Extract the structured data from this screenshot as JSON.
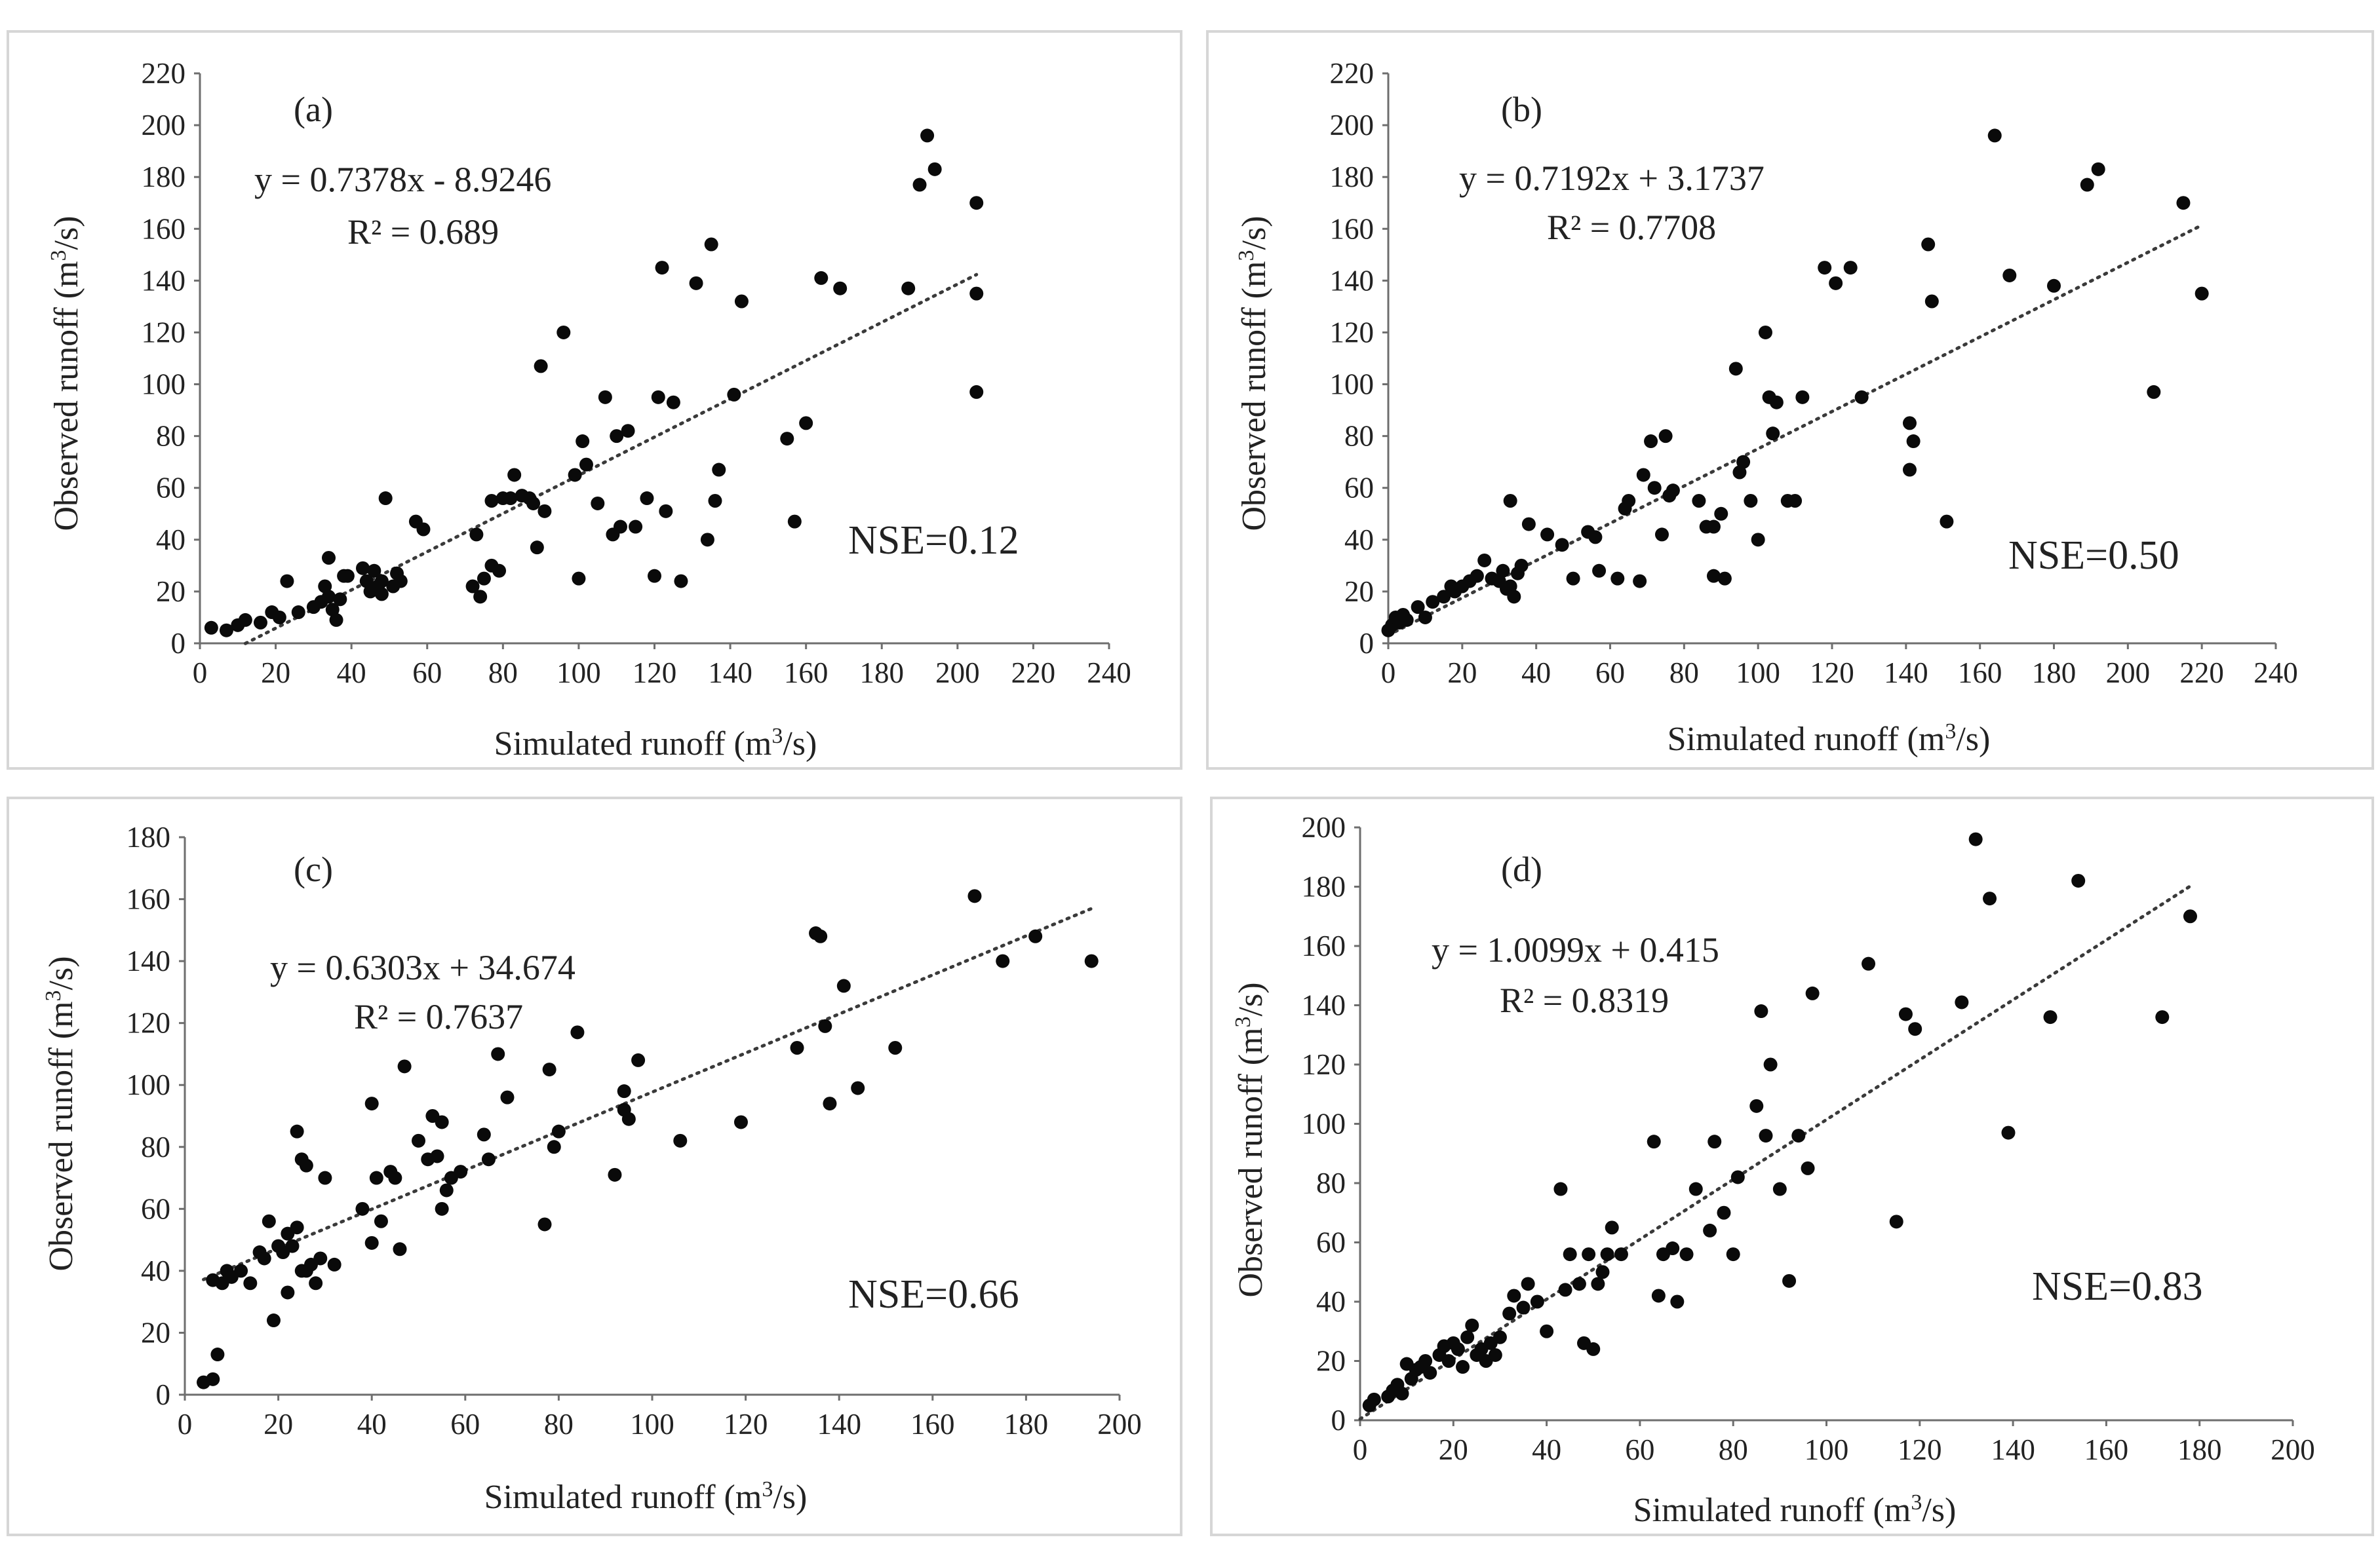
{
  "chart_data": [
    {
      "type": "scatter",
      "panel_label": "(a)",
      "xlabel": "Simulated runoff (m3/s)",
      "ylabel": "Observed runoff (m3/s)",
      "xlim": [
        0,
        240
      ],
      "ylim": [
        0,
        220
      ],
      "xticks": [
        0,
        20,
        40,
        60,
        80,
        100,
        120,
        140,
        160,
        180,
        200,
        220,
        240
      ],
      "yticks": [
        0,
        20,
        40,
        60,
        80,
        100,
        120,
        140,
        160,
        180,
        200,
        220
      ],
      "trendline": {
        "slope": 0.7378,
        "intercept": -8.9246,
        "x_range": [
          12,
          205
        ]
      },
      "equation": "y = 0.7378x - 8.9246",
      "r2": "R² = 0.689",
      "nse": "NSE=0.12",
      "points": [
        [
          3,
          6
        ],
        [
          7,
          5
        ],
        [
          10,
          7
        ],
        [
          12,
          9
        ],
        [
          16,
          8
        ],
        [
          19,
          12
        ],
        [
          21,
          10
        ],
        [
          23,
          24
        ],
        [
          26,
          12
        ],
        [
          30,
          14
        ],
        [
          32,
          16
        ],
        [
          33,
          22
        ],
        [
          34,
          33
        ],
        [
          34,
          18
        ],
        [
          35,
          13
        ],
        [
          36,
          9
        ],
        [
          37,
          17
        ],
        [
          38,
          26
        ],
        [
          39,
          26
        ],
        [
          43,
          29
        ],
        [
          44,
          24
        ],
        [
          45,
          20
        ],
        [
          46,
          28
        ],
        [
          47,
          22
        ],
        [
          48,
          24
        ],
        [
          48,
          19
        ],
        [
          49,
          56
        ],
        [
          51,
          22
        ],
        [
          52,
          27
        ],
        [
          53,
          24
        ],
        [
          57,
          47
        ],
        [
          59,
          44
        ],
        [
          72,
          22
        ],
        [
          73,
          42
        ],
        [
          74,
          18
        ],
        [
          75,
          25
        ],
        [
          77,
          30
        ],
        [
          77,
          55
        ],
        [
          79,
          28
        ],
        [
          80,
          56
        ],
        [
          82,
          56
        ],
        [
          83,
          65
        ],
        [
          85,
          57
        ],
        [
          87,
          56
        ],
        [
          88,
          54
        ],
        [
          89,
          37
        ],
        [
          90,
          107
        ],
        [
          91,
          51
        ],
        [
          96,
          120
        ],
        [
          99,
          65
        ],
        [
          100,
          25
        ],
        [
          101,
          78
        ],
        [
          102,
          69
        ],
        [
          105,
          54
        ],
        [
          107,
          95
        ],
        [
          109,
          42
        ],
        [
          110,
          80
        ],
        [
          111,
          45
        ],
        [
          113,
          82
        ],
        [
          115,
          45
        ],
        [
          118,
          56
        ],
        [
          120,
          26
        ],
        [
          121,
          95
        ],
        [
          122,
          145
        ],
        [
          123,
          51
        ],
        [
          125,
          93
        ],
        [
          127,
          24
        ],
        [
          131,
          139
        ],
        [
          134,
          40
        ],
        [
          135,
          154
        ],
        [
          136,
          55
        ],
        [
          137,
          67
        ],
        [
          141,
          96
        ],
        [
          143,
          132
        ],
        [
          155,
          79
        ],
        [
          157,
          47
        ],
        [
          160,
          85
        ],
        [
          164,
          141
        ],
        [
          169,
          137
        ],
        [
          187,
          137
        ],
        [
          190,
          177
        ],
        [
          192,
          196
        ],
        [
          194,
          183
        ],
        [
          205,
          170
        ],
        [
          205,
          135
        ],
        [
          205,
          97
        ]
      ]
    },
    {
      "type": "scatter",
      "panel_label": "(b)",
      "xlabel": "Simulated runoff (m3/s)",
      "ylabel": "Observed runoff (m3/s)",
      "xlim": [
        0,
        240
      ],
      "ylim": [
        0,
        220
      ],
      "xticks": [
        0,
        20,
        40,
        60,
        80,
        100,
        120,
        140,
        160,
        180,
        200,
        220,
        240
      ],
      "yticks": [
        0,
        20,
        40,
        60,
        80,
        100,
        120,
        140,
        160,
        180,
        200,
        220
      ],
      "trendline": {
        "slope": 0.7192,
        "intercept": 3.1737,
        "x_range": [
          0,
          220
        ]
      },
      "equation": "y = 0.7192x + 3.1737",
      "r2": "R² = 0.7708",
      "nse": "NSE=0.50",
      "points": [
        [
          0,
          5
        ],
        [
          1,
          7
        ],
        [
          2,
          10
        ],
        [
          3,
          8
        ],
        [
          4,
          11
        ],
        [
          5,
          9
        ],
        [
          8,
          14
        ],
        [
          10,
          10
        ],
        [
          12,
          16
        ],
        [
          15,
          18
        ],
        [
          17,
          22
        ],
        [
          18,
          20
        ],
        [
          20,
          22
        ],
        [
          22,
          24
        ],
        [
          24,
          26
        ],
        [
          26,
          32
        ],
        [
          28,
          25
        ],
        [
          30,
          24
        ],
        [
          31,
          28
        ],
        [
          32,
          21
        ],
        [
          33,
          22
        ],
        [
          33,
          55
        ],
        [
          34,
          18
        ],
        [
          35,
          27
        ],
        [
          36,
          30
        ],
        [
          38,
          46
        ],
        [
          43,
          42
        ],
        [
          47,
          38
        ],
        [
          50,
          25
        ],
        [
          54,
          43
        ],
        [
          56,
          41
        ],
        [
          57,
          28
        ],
        [
          62,
          25
        ],
        [
          64,
          52
        ],
        [
          65,
          55
        ],
        [
          68,
          24
        ],
        [
          69,
          65
        ],
        [
          71,
          78
        ],
        [
          72,
          60
        ],
        [
          74,
          42
        ],
        [
          75,
          80
        ],
        [
          76,
          57
        ],
        [
          77,
          59
        ],
        [
          84,
          55
        ],
        [
          86,
          45
        ],
        [
          88,
          26
        ],
        [
          88,
          45
        ],
        [
          90,
          50
        ],
        [
          91,
          25
        ],
        [
          94,
          106
        ],
        [
          95,
          66
        ],
        [
          96,
          70
        ],
        [
          98,
          55
        ],
        [
          100,
          40
        ],
        [
          102,
          120
        ],
        [
          103,
          95
        ],
        [
          104,
          81
        ],
        [
          105,
          93
        ],
        [
          108,
          55
        ],
        [
          110,
          55
        ],
        [
          112,
          95
        ],
        [
          118,
          145
        ],
        [
          121,
          139
        ],
        [
          125,
          145
        ],
        [
          128,
          95
        ],
        [
          141,
          85
        ],
        [
          142,
          78
        ],
        [
          141,
          67
        ],
        [
          146,
          154
        ],
        [
          147,
          132
        ],
        [
          151,
          47
        ],
        [
          164,
          196
        ],
        [
          168,
          142
        ],
        [
          180,
          138
        ],
        [
          189,
          177
        ],
        [
          192,
          183
        ],
        [
          207,
          97
        ],
        [
          215,
          170
        ],
        [
          220,
          135
        ]
      ]
    },
    {
      "type": "scatter",
      "panel_label": "(c)",
      "xlabel": "Simulated runoff (m3/s)",
      "ylabel": "Observed runoff (m3/s)",
      "xlim": [
        0,
        200
      ],
      "ylim": [
        0,
        180
      ],
      "xticks": [
        0,
        20,
        40,
        60,
        80,
        100,
        120,
        140,
        160,
        180,
        200
      ],
      "yticks": [
        0,
        20,
        40,
        60,
        80,
        100,
        120,
        140,
        160,
        180
      ],
      "trendline": {
        "slope": 0.6303,
        "intercept": 34.674,
        "x_range": [
          4,
          195
        ]
      },
      "equation": "y = 0.6303x + 34.674",
      "r2": "R² = 0.7637",
      "nse": "NSE=0.66",
      "points": [
        [
          4,
          4
        ],
        [
          6,
          5
        ],
        [
          7,
          13
        ],
        [
          6,
          37
        ],
        [
          8,
          36
        ],
        [
          9,
          40
        ],
        [
          10,
          38
        ],
        [
          12,
          40
        ],
        [
          14,
          36
        ],
        [
          16,
          46
        ],
        [
          17,
          44
        ],
        [
          18,
          56
        ],
        [
          19,
          24
        ],
        [
          20,
          48
        ],
        [
          21,
          46
        ],
        [
          22,
          52
        ],
        [
          22,
          33
        ],
        [
          23,
          48
        ],
        [
          24,
          85
        ],
        [
          24,
          54
        ],
        [
          25,
          76
        ],
        [
          25,
          40
        ],
        [
          26,
          74
        ],
        [
          26,
          40
        ],
        [
          27,
          42
        ],
        [
          28,
          36
        ],
        [
          29,
          44
        ],
        [
          30,
          70
        ],
        [
          32,
          42
        ],
        [
          38,
          60
        ],
        [
          40,
          94
        ],
        [
          40,
          49
        ],
        [
          41,
          70
        ],
        [
          42,
          56
        ],
        [
          44,
          72
        ],
        [
          45,
          70
        ],
        [
          46,
          47
        ],
        [
          47,
          106
        ],
        [
          50,
          82
        ],
        [
          52,
          76
        ],
        [
          53,
          90
        ],
        [
          54,
          77
        ],
        [
          55,
          88
        ],
        [
          55,
          60
        ],
        [
          56,
          66
        ],
        [
          57,
          70
        ],
        [
          59,
          72
        ],
        [
          64,
          84
        ],
        [
          65,
          76
        ],
        [
          67,
          110
        ],
        [
          69,
          96
        ],
        [
          77,
          55
        ],
        [
          78,
          105
        ],
        [
          79,
          80
        ],
        [
          80,
          85
        ],
        [
          84,
          117
        ],
        [
          92,
          71
        ],
        [
          94,
          98
        ],
        [
          94,
          92
        ],
        [
          95,
          89
        ],
        [
          97,
          108
        ],
        [
          106,
          82
        ],
        [
          119,
          88
        ],
        [
          131,
          112
        ],
        [
          135,
          149
        ],
        [
          136,
          148
        ],
        [
          137,
          119
        ],
        [
          138,
          94
        ],
        [
          141,
          132
        ],
        [
          144,
          99
        ],
        [
          152,
          112
        ],
        [
          169,
          161
        ],
        [
          175,
          140
        ],
        [
          182,
          148
        ],
        [
          194,
          140
        ]
      ]
    },
    {
      "type": "scatter",
      "panel_label": "(d)",
      "xlabel": "Simulated runoff (m3/s)",
      "ylabel": "Observed runoff (m3/s)",
      "xlim": [
        0,
        200
      ],
      "ylim": [
        0,
        200
      ],
      "xticks": [
        0,
        20,
        40,
        60,
        80,
        100,
        120,
        140,
        160,
        180,
        200
      ],
      "yticks": [
        0,
        20,
        40,
        60,
        80,
        100,
        120,
        140,
        160,
        180,
        200
      ],
      "trendline": {
        "slope": 1.0099,
        "intercept": 0.415,
        "x_range": [
          0,
          178
        ]
      },
      "equation": "y = 1.0099x + 0.415",
      "r2": "R² = 0.8319",
      "nse": "NSE=0.83",
      "points": [
        [
          2,
          5
        ],
        [
          3,
          7
        ],
        [
          6,
          8
        ],
        [
          7,
          10
        ],
        [
          8,
          12
        ],
        [
          9,
          9
        ],
        [
          10,
          19
        ],
        [
          11,
          14
        ],
        [
          12,
          17
        ],
        [
          13,
          18
        ],
        [
          14,
          20
        ],
        [
          15,
          16
        ],
        [
          17,
          22
        ],
        [
          18,
          25
        ],
        [
          19,
          20
        ],
        [
          20,
          26
        ],
        [
          21,
          24
        ],
        [
          22,
          18
        ],
        [
          23,
          28
        ],
        [
          24,
          32
        ],
        [
          25,
          22
        ],
        [
          26,
          24
        ],
        [
          27,
          20
        ],
        [
          28,
          26
        ],
        [
          29,
          22
        ],
        [
          30,
          28
        ],
        [
          32,
          36
        ],
        [
          33,
          42
        ],
        [
          35,
          38
        ],
        [
          36,
          46
        ],
        [
          38,
          40
        ],
        [
          40,
          30
        ],
        [
          43,
          78
        ],
        [
          44,
          44
        ],
        [
          45,
          56
        ],
        [
          47,
          46
        ],
        [
          48,
          26
        ],
        [
          49,
          56
        ],
        [
          50,
          24
        ],
        [
          51,
          46
        ],
        [
          52,
          50
        ],
        [
          53,
          56
        ],
        [
          54,
          65
        ],
        [
          56,
          56
        ],
        [
          63,
          94
        ],
        [
          64,
          42
        ],
        [
          65,
          56
        ],
        [
          67,
          58
        ],
        [
          68,
          40
        ],
        [
          70,
          56
        ],
        [
          72,
          78
        ],
        [
          75,
          64
        ],
        [
          76,
          94
        ],
        [
          78,
          70
        ],
        [
          80,
          56
        ],
        [
          81,
          82
        ],
        [
          85,
          106
        ],
        [
          86,
          138
        ],
        [
          87,
          96
        ],
        [
          88,
          120
        ],
        [
          90,
          78
        ],
        [
          92,
          47
        ],
        [
          94,
          96
        ],
        [
          96,
          85
        ],
        [
          97,
          144
        ],
        [
          109,
          154
        ],
        [
          115,
          67
        ],
        [
          117,
          137
        ],
        [
          119,
          132
        ],
        [
          129,
          141
        ],
        [
          132,
          196
        ],
        [
          135,
          176
        ],
        [
          139,
          97
        ],
        [
          148,
          136
        ],
        [
          154,
          182
        ],
        [
          172,
          136
        ],
        [
          178,
          170
        ]
      ]
    }
  ]
}
